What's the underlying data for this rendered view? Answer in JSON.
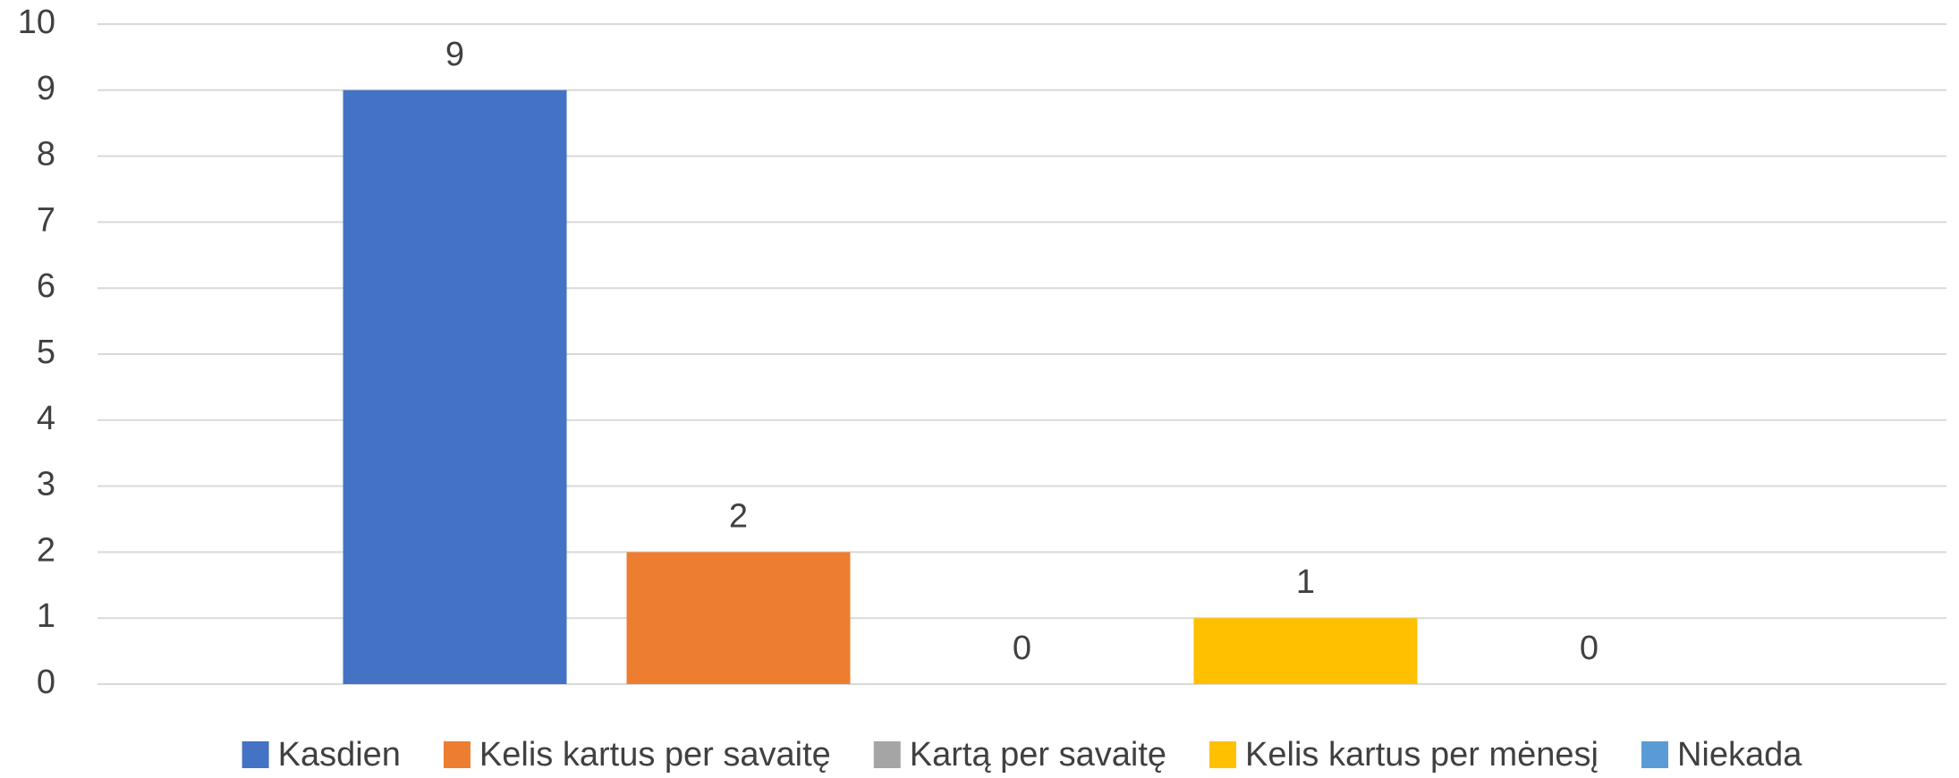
{
  "chart_data": {
    "type": "bar",
    "categories": [
      null
    ],
    "series": [
      {
        "name": "Kasdien",
        "color": "#4472c4",
        "values": [
          9
        ]
      },
      {
        "name": "Kelis kartus per savaitę",
        "color": "#ed7d31",
        "values": [
          2
        ]
      },
      {
        "name": "Kartą per savaitę",
        "color": "#a5a5a5",
        "values": [
          0
        ]
      },
      {
        "name": "Kelis kartus per mėnesį",
        "color": "#ffc000",
        "values": [
          1
        ]
      },
      {
        "name": "Niekada",
        "color": "#5b9bd5",
        "values": [
          0
        ]
      }
    ],
    "ylim": [
      0,
      10
    ],
    "yticks": [
      0,
      1,
      2,
      3,
      4,
      5,
      6,
      7,
      8,
      9,
      10
    ],
    "grid": true,
    "legend": "bottom"
  }
}
